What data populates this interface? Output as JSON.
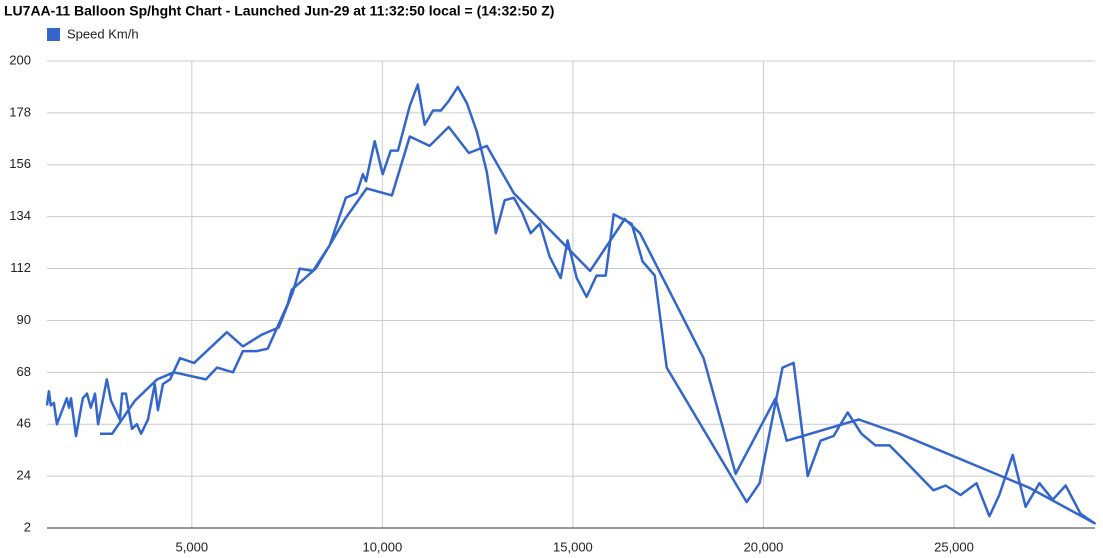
{
  "chart_data": {
    "type": "line",
    "title": "LU7AA-11 Balloon Sp/hght Chart - Launched Jun-29 at 11:32:50 local = (14:32:50 Z)",
    "x": [
      1200,
      1250,
      1300,
      1380,
      1460,
      1720,
      1780,
      1830,
      1960,
      2140,
      2250,
      2350,
      2460,
      2540,
      2770,
      2880,
      3110,
      3170,
      3270,
      3430,
      3560,
      3670,
      3850,
      4030,
      4110,
      4240,
      4430,
      4690,
      5060,
      5920,
      6340,
      6840,
      7280,
      7650,
      7830,
      8180,
      8620,
      9040,
      9330,
      9490,
      9570,
      9800,
      10010,
      10220,
      10410,
      10720,
      10930,
      11110,
      11330,
      11540,
      11740,
      11980,
      12220,
      12480,
      12740,
      12980,
      13210,
      13450,
      13660,
      13890,
      14130,
      14390,
      14680,
      14860,
      15100,
      15360,
      15620,
      15860,
      16070,
      16540,
      16830,
      17150,
      17460,
      19560,
      19900,
      20500,
      20790,
      21160,
      21500,
      21840,
      22210,
      22570,
      22940,
      23310,
      23680,
      24460,
      24780,
      25170,
      25590,
      25930,
      26190,
      26540,
      26880,
      27240,
      27590,
      27930,
      28320,
      28690,
      26980,
      23570,
      22500,
      20610,
      20320,
      19270,
      18430,
      16760,
      16360,
      15450,
      13450,
      12740,
      12270,
      11740,
      11240,
      10720,
      10250,
      9590,
      9020,
      8620,
      8250,
      7620,
      7520,
      6990,
      6700,
      6340,
      6080,
      5660,
      5370,
      4530,
      4090,
      3510,
      2910,
      2590
    ],
    "series": [
      {
        "name": "Speed Km/h",
        "color": "#3366cc",
        "values": [
          54,
          60,
          54,
          55,
          46,
          57,
          53,
          57,
          41,
          57,
          59,
          53,
          59,
          46,
          65,
          56,
          48,
          59,
          59,
          44,
          46,
          42,
          48,
          63,
          52,
          63,
          65,
          74,
          72,
          85,
          79,
          84,
          87,
          102,
          112,
          111,
          122,
          142,
          144,
          152,
          149,
          166,
          152,
          162,
          162,
          181,
          190,
          173,
          179,
          179,
          183,
          189,
          182,
          170,
          153,
          127,
          141,
          142,
          136,
          127,
          131,
          117,
          108,
          124,
          108,
          100,
          109,
          109,
          135,
          131,
          115,
          109,
          70,
          13,
          21,
          70,
          72,
          24,
          39,
          41,
          51,
          42,
          37,
          37,
          31,
          18,
          20,
          16,
          21,
          7,
          16,
          33,
          11,
          21,
          14,
          20,
          8,
          4,
          19,
          42,
          48,
          39,
          57,
          25,
          74,
          127,
          133,
          111,
          144,
          164,
          161,
          172,
          164,
          168,
          143,
          146,
          133,
          122,
          112,
          103,
          97,
          78,
          77,
          77,
          68,
          70,
          65,
          68,
          65,
          56,
          42,
          42
        ]
      }
    ],
    "xlim": [
      1200,
      28700
    ],
    "ylim": [
      2,
      200
    ],
    "xticks": [
      {
        "value": 5000,
        "label": "5,000"
      },
      {
        "value": 10000,
        "label": "10,000"
      },
      {
        "value": 15000,
        "label": "15,000"
      },
      {
        "value": 20000,
        "label": "20,000"
      },
      {
        "value": 25000,
        "label": "25,000"
      }
    ],
    "yticks": [
      2,
      24,
      46,
      68,
      90,
      112,
      134,
      156,
      178,
      200
    ],
    "grid": true
  }
}
